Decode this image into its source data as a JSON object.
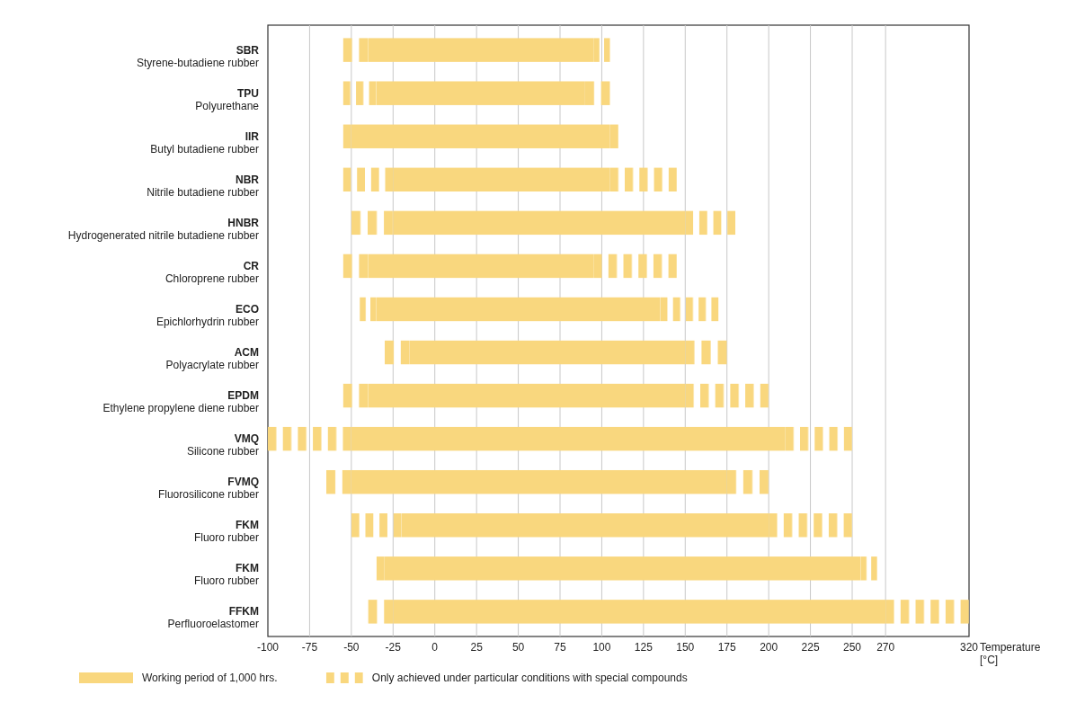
{
  "chart_data": {
    "type": "bar",
    "orientation": "horizontal",
    "categories": [
      "SBR\nStyrene-butadiene rubber",
      "TPU\nPolyurethane",
      "IIR\nButyl butadiene rubber",
      "NBR\nNitrile butadiene rubber",
      "HNBR\nHydrogenerated nitrile butadiene rubber",
      "CR\nChloroprene rubber",
      "ECO\nEpichlorhydrin rubber",
      "ACM\nPolyacrylate rubber",
      "EPDM\nEthylene propylene diene rubber",
      "VMQ\nSilicone rubber",
      "FVMQ\nFluorosilicone rubber",
      "FKM\nFluoro rubber",
      "FKM\nFluoro rubber",
      "FFKM\nPerfluoroelastomer"
    ],
    "series": [
      {
        "name": "Working period of 1,000 hrs.",
        "color": "#f9d77e",
        "line_style": "solid",
        "base": [
          -40,
          -35,
          -50,
          -25,
          -25,
          -40,
          -35,
          -15,
          -40,
          -50,
          -50,
          -20,
          -30,
          -25
        ],
        "values": [
          135,
          125,
          155,
          130,
          175,
          135,
          170,
          165,
          190,
          260,
          225,
          220,
          285,
          295
        ]
      },
      {
        "name": "Only achieved under particular conditions with special compounds",
        "color": "#f9d77e",
        "line_style": "dashed",
        "base": [
          -55,
          -55,
          -55,
          -55,
          -50,
          -55,
          -45,
          -30,
          -55,
          -100,
          -65,
          -50,
          -35,
          -40
        ],
        "values": [
          15,
          20,
          5,
          30,
          25,
          15,
          10,
          15,
          15,
          50,
          15,
          30,
          5,
          15
        ]
      },
      {
        "color": "#f9d77e",
        "line_style": "dashed",
        "base": [
          95,
          90,
          105,
          105,
          150,
          95,
          135,
          150,
          150,
          210,
          175,
          200,
          255,
          270
        ],
        "values": [
          10,
          15,
          5,
          40,
          30,
          50,
          35,
          25,
          50,
          40,
          25,
          50,
          10,
          50
        ]
      }
    ],
    "xlabel": "Temperature [°C]",
    "xlim": [
      -100,
      320
    ],
    "xticks": [
      -100,
      -75,
      -50,
      -25,
      0,
      25,
      50,
      75,
      100,
      125,
      150,
      175,
      200,
      225,
      250,
      270,
      320
    ],
    "grid": "x",
    "legend": "bottom"
  }
}
